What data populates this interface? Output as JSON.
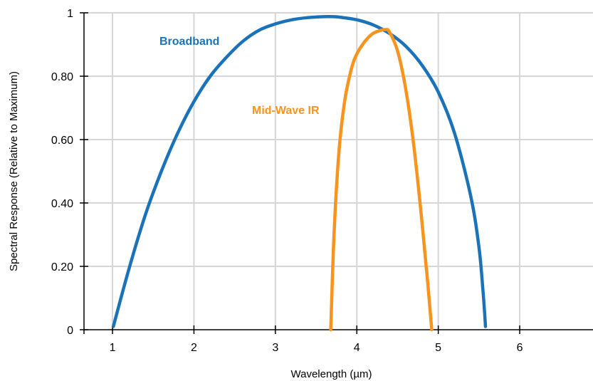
{
  "chart_data": {
    "type": "line",
    "title": "",
    "xlabel": "Wavelength (µm)",
    "ylabel": "Spectral Response (Relative to Maximum)",
    "xlim": [
      0.65,
      6.9
    ],
    "ylim": [
      0,
      1
    ],
    "grid": true,
    "x_ticks": [
      1,
      2,
      3,
      4,
      5,
      6
    ],
    "x_tick_labels": [
      "1",
      "2",
      "3",
      "4",
      "5",
      "6"
    ],
    "y_ticks": [
      0,
      0.2,
      0.4,
      0.6,
      0.8,
      1
    ],
    "y_tick_labels": [
      "0",
      "0.20",
      "0.40",
      "0.60",
      "0.80",
      "1"
    ],
    "series": [
      {
        "name": "Broadband",
        "color": "#1a73b8",
        "label_color": "#1a73b8",
        "x": [
          1.01,
          1.2,
          1.4,
          1.6,
          1.8,
          2.0,
          2.2,
          2.4,
          2.6,
          2.8,
          3.0,
          3.2,
          3.4,
          3.6,
          3.7,
          3.8,
          4.0,
          4.2,
          4.4,
          4.6,
          4.8,
          5.0,
          5.2,
          5.4,
          5.5,
          5.55,
          5.57,
          5.58
        ],
        "y": [
          0.01,
          0.19,
          0.36,
          0.5,
          0.62,
          0.72,
          0.8,
          0.86,
          0.91,
          0.945,
          0.965,
          0.978,
          0.985,
          0.988,
          0.988,
          0.986,
          0.978,
          0.962,
          0.935,
          0.895,
          0.835,
          0.75,
          0.62,
          0.42,
          0.26,
          0.12,
          0.05,
          0.01
        ]
      },
      {
        "name": "Mid-Wave IR",
        "color": "#f7941d",
        "label_color": "#f7941d",
        "x": [
          3.68,
          3.72,
          3.78,
          3.85,
          3.93,
          4.0,
          4.1,
          4.2,
          4.3,
          4.35,
          4.4,
          4.5,
          4.6,
          4.7,
          4.8,
          4.87,
          4.92
        ],
        "y": [
          0.0,
          0.3,
          0.56,
          0.72,
          0.82,
          0.87,
          0.91,
          0.935,
          0.945,
          0.947,
          0.94,
          0.88,
          0.76,
          0.58,
          0.34,
          0.15,
          0.0
        ]
      }
    ]
  }
}
